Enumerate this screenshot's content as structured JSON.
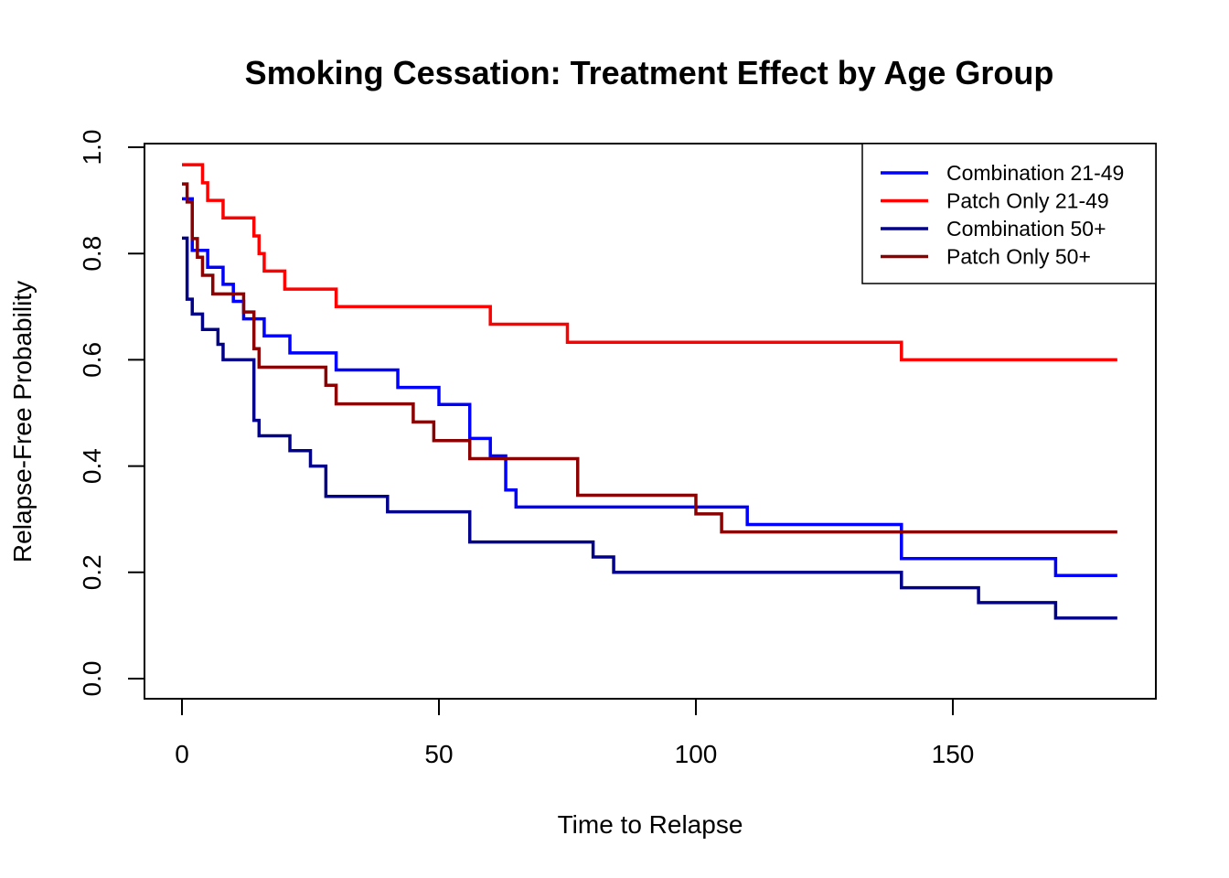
{
  "chart_data": {
    "type": "line",
    "step": true,
    "title": "Smoking Cessation: Treatment Effect by Age Group",
    "xlabel": "Time to Relapse",
    "ylabel": "Relapse-Free Probability",
    "xlim": [
      0,
      182
    ],
    "ylim": [
      0,
      1
    ],
    "x_ticks": [
      0,
      50,
      100,
      150
    ],
    "y_ticks": [
      0.0,
      0.2,
      0.4,
      0.6,
      0.8,
      1.0
    ],
    "x_tick_labels": [
      "0",
      "50",
      "100",
      "150"
    ],
    "y_tick_labels": [
      "0.0",
      "0.2",
      "0.4",
      "0.6",
      "0.8",
      "1.0"
    ],
    "grid": false,
    "legend_position": "top-right",
    "series": [
      {
        "name": "Combination 21-49",
        "color": "#0000FF",
        "x": [
          0,
          2,
          5,
          8,
          10,
          12,
          14,
          16,
          21,
          30,
          42,
          50,
          56,
          60,
          63,
          65,
          110,
          140,
          170,
          182
        ],
        "y": [
          0.903,
          0.806,
          0.774,
          0.742,
          0.71,
          0.677,
          0.677,
          0.645,
          0.613,
          0.581,
          0.548,
          0.516,
          0.452,
          0.419,
          0.355,
          0.323,
          0.29,
          0.226,
          0.194,
          0.194
        ]
      },
      {
        "name": "Patch Only 21-49",
        "color": "#FF0000",
        "x": [
          0,
          4,
          5,
          8,
          14,
          15,
          16,
          20,
          30,
          60,
          75,
          140,
          182
        ],
        "y": [
          0.967,
          0.933,
          0.9,
          0.867,
          0.833,
          0.8,
          0.767,
          0.733,
          0.7,
          0.667,
          0.633,
          0.6,
          0.6
        ]
      },
      {
        "name": "Combination 50+",
        "color": "#00008B",
        "x": [
          0,
          1,
          2,
          4,
          7,
          8,
          14,
          15,
          21,
          25,
          28,
          40,
          56,
          80,
          84,
          140,
          155,
          170,
          182
        ],
        "y": [
          0.829,
          0.714,
          0.686,
          0.657,
          0.629,
          0.6,
          0.486,
          0.457,
          0.429,
          0.4,
          0.343,
          0.314,
          0.257,
          0.229,
          0.2,
          0.171,
          0.143,
          0.114,
          0.114
        ]
      },
      {
        "name": "Patch Only 50+",
        "color": "#8B0000",
        "x": [
          0,
          1,
          2,
          3,
          4,
          6,
          7,
          12,
          14,
          15,
          28,
          30,
          45,
          49,
          56,
          77,
          100,
          105,
          182
        ],
        "y": [
          0.931,
          0.897,
          0.828,
          0.793,
          0.759,
          0.724,
          0.724,
          0.69,
          0.621,
          0.586,
          0.552,
          0.517,
          0.483,
          0.448,
          0.414,
          0.345,
          0.31,
          0.276,
          0.276
        ]
      }
    ]
  }
}
